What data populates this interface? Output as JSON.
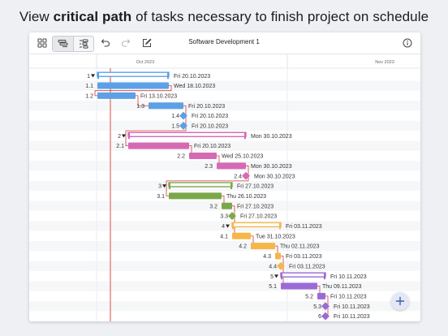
{
  "headline": {
    "prefix": "View ",
    "emphasis": "critical path",
    "suffix": " of tasks necessary to finish project on schedule"
  },
  "toolbar": {
    "title": "Software Development 1",
    "icons": [
      "grid-icon",
      "task-list-icon",
      "gantt-icon",
      "undo-icon",
      "redo-icon",
      "edit-icon",
      "info-icon"
    ]
  },
  "timeline": {
    "months": [
      "Oct 2023",
      "Nov 2023"
    ]
  },
  "colors": {
    "blue": "#5ca0e6",
    "pink": "#d669b4",
    "green": "#7aa84a",
    "orange": "#f5b74a",
    "purple": "#9a6ad6",
    "critical": "#d63a3a",
    "today": "#e0483e"
  },
  "tasks": [
    {
      "id": "1",
      "kind": "summary",
      "color": "blue",
      "date": "Fri 20.10.2023"
    },
    {
      "id": "1.1",
      "kind": "task",
      "color": "blue",
      "date": "Wed 18.10.2023"
    },
    {
      "id": "1.2",
      "kind": "task",
      "color": "blue",
      "date": "Fri 13.10.2023"
    },
    {
      "id": "1.3",
      "kind": "task",
      "color": "blue",
      "date": "Fri 20.10.2023"
    },
    {
      "id": "1.4",
      "kind": "milestone",
      "color": "blue",
      "date": "Fri 20.10.2023"
    },
    {
      "id": "1.5",
      "kind": "milestone",
      "color": "blue",
      "date": "Fri 20.10.2023"
    },
    {
      "id": "2",
      "kind": "summary",
      "color": "pink",
      "date": "Mon 30.10.2023"
    },
    {
      "id": "2.1",
      "kind": "task",
      "color": "pink",
      "date": "Fri 20.10.2023"
    },
    {
      "id": "2.2",
      "kind": "task",
      "color": "pink",
      "date": "Wed 25.10.2023"
    },
    {
      "id": "2.3",
      "kind": "task",
      "color": "pink",
      "date": "Mon 30.10.2023"
    },
    {
      "id": "2.4",
      "kind": "milestone",
      "color": "pink",
      "date": "Mon 30.10.2023"
    },
    {
      "id": "3",
      "kind": "summary",
      "color": "green",
      "date": "Fri 27.10.2023"
    },
    {
      "id": "3.1",
      "kind": "task",
      "color": "green",
      "date": "Thu 26.10.2023"
    },
    {
      "id": "3.2",
      "kind": "task",
      "color": "green",
      "date": "Fri 27.10.2023"
    },
    {
      "id": "3.3",
      "kind": "milestone",
      "color": "green",
      "date": "Fri 27.10.2023"
    },
    {
      "id": "4",
      "kind": "summary",
      "color": "orange",
      "date": "Fri 03.11.2023"
    },
    {
      "id": "4.1",
      "kind": "task",
      "color": "orange",
      "date": "Tue 31.10.2023"
    },
    {
      "id": "4.2",
      "kind": "task",
      "color": "orange",
      "date": "Thu 02.11.2023"
    },
    {
      "id": "4.3",
      "kind": "task",
      "color": "orange",
      "date": "Fri 03.11.2023"
    },
    {
      "id": "4.4",
      "kind": "milestone",
      "color": "orange",
      "date": "Fri 03.11.2023"
    },
    {
      "id": "5",
      "kind": "summary",
      "color": "purple",
      "date": "Fri 10.11.2023"
    },
    {
      "id": "5.1",
      "kind": "task",
      "color": "purple",
      "date": "Thu 09.11.2023"
    },
    {
      "id": "5.2",
      "kind": "task",
      "color": "purple",
      "date": "Fri 10.11.2023"
    },
    {
      "id": "5.3",
      "kind": "milestone",
      "color": "purple",
      "date": "Fri 10.11.2023"
    },
    {
      "id": "6",
      "kind": "milestone",
      "color": "purple",
      "date": "Fri 10.11.2023"
    }
  ]
}
